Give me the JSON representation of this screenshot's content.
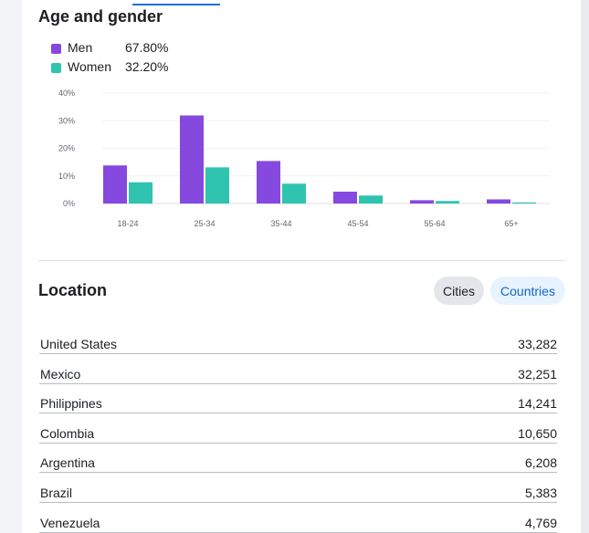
{
  "age_gender": {
    "title": "Age and gender",
    "legend": [
      {
        "label": "Men",
        "value": "67.80%",
        "color": "#8549e0"
      },
      {
        "label": "Women",
        "value": "32.20%",
        "color": "#2ec4b0"
      }
    ]
  },
  "chart_data": {
    "type": "bar",
    "categories": [
      "18-24",
      "25-34",
      "35-44",
      "45-54",
      "55-64",
      "65+"
    ],
    "series": [
      {
        "name": "Men",
        "values": [
          13.8,
          31.9,
          15.4,
          4.3,
          1.2,
          1.5
        ],
        "color": "#8549e0"
      },
      {
        "name": "Women",
        "values": [
          7.7,
          13.1,
          7.2,
          2.9,
          0.9,
          0.4
        ],
        "color": "#2ec4b0"
      }
    ],
    "yticks": [
      "0%",
      "10%",
      "20%",
      "30%",
      "40%"
    ],
    "ylim": [
      0,
      40
    ],
    "grid": true
  },
  "location": {
    "title": "Location",
    "tabs": {
      "cities": "Cities",
      "countries": "Countries"
    },
    "rows": [
      {
        "name": "United States",
        "value": "33,282"
      },
      {
        "name": "Mexico",
        "value": "32,251"
      },
      {
        "name": "Philippines",
        "value": "14,241"
      },
      {
        "name": "Colombia",
        "value": "10,650"
      },
      {
        "name": "Argentina",
        "value": "6,208"
      },
      {
        "name": "Brazil",
        "value": "5,383"
      },
      {
        "name": "Venezuela",
        "value": "4,769"
      }
    ]
  }
}
